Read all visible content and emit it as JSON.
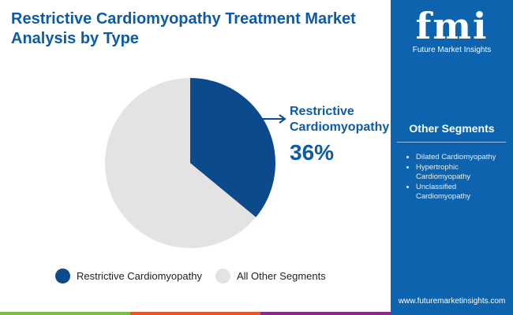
{
  "header": {
    "title": "Restrictive Cardiomyopathy Treatment Market Analysis by Type"
  },
  "chart_data": {
    "type": "pie",
    "title": "Restrictive Cardiomyopathy Treatment Market Analysis by Type",
    "slices": [
      {
        "label": "Restrictive Cardiomyopathy",
        "value": 36,
        "color": "#0b4a8b"
      },
      {
        "label": "All Other Segments",
        "value": 64,
        "color": "#e3e3e3"
      }
    ],
    "callout": {
      "label": "Restrictive Cardiomyopathy",
      "value_text": "36%"
    },
    "legend_placement": "bottom"
  },
  "sidebar": {
    "logo_text": "fmi",
    "brand": "Future Market Insights",
    "heading": "Other Segments",
    "items": [
      "Dilated Cardiomyopathy",
      "Hypertrophic Cardiomyopathy",
      "Unclassified Cardiomyopathy"
    ],
    "url": "www.futuremarketinsights.com"
  },
  "colors": {
    "accent": "#0d63ad",
    "green": "#7cbd42",
    "orange": "#e8552a",
    "purple": "#8a2a86"
  }
}
